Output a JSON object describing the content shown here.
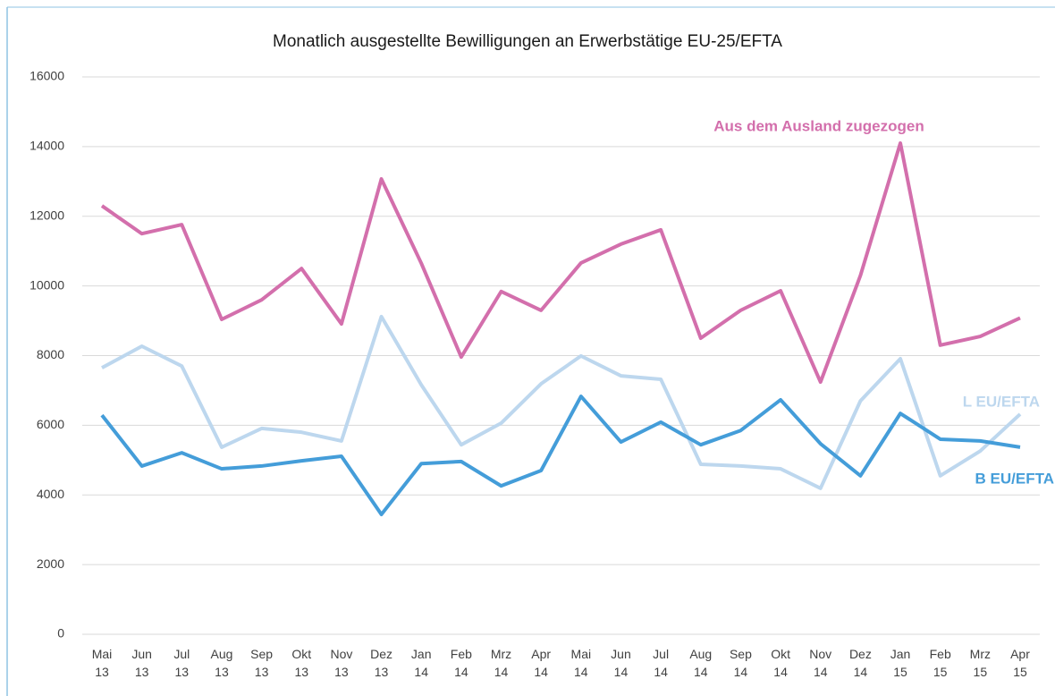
{
  "chart_data": {
    "type": "line",
    "title": "Monatlich ausgestellte Bewilligungen an Erwerbstätige EU-25/EFTA",
    "categories": [
      "Mai 13",
      "Jun 13",
      "Jul 13",
      "Aug 13",
      "Sep 13",
      "Okt 13",
      "Nov 13",
      "Dez 13",
      "Jan 14",
      "Feb 14",
      "Mrz 14",
      "Apr 14",
      "Mai 14",
      "Jun 14",
      "Jul 14",
      "Aug 14",
      "Sep 14",
      "Okt 14",
      "Nov 14",
      "Dez 14",
      "Jan 15",
      "Feb 15",
      "Mrz 15",
      "Apr 15"
    ],
    "series": [
      {
        "name": "Aus dem Ausland zugezogen",
        "color": "#d36fac",
        "values": [
          12300,
          11500,
          11760,
          9040,
          9600,
          10500,
          8910,
          13070,
          10650,
          7960,
          9840,
          9300,
          10660,
          11200,
          11610,
          8500,
          9300,
          9860,
          7240,
          10300,
          14100,
          8300,
          8550,
          9080
        ]
      },
      {
        "name": "L EU/EFTA",
        "color": "#bdd7ee",
        "values": [
          7650,
          8270,
          7700,
          5370,
          5910,
          5800,
          5550,
          9120,
          7160,
          5440,
          6060,
          7190,
          7990,
          7420,
          7320,
          4880,
          4830,
          4750,
          4190,
          6700,
          7910,
          4550,
          5260,
          6320
        ]
      },
      {
        "name": "B EU/EFTA",
        "color": "#449dd9",
        "values": [
          6290,
          4830,
          5210,
          4750,
          4830,
          4980,
          5110,
          3440,
          4900,
          4960,
          4260,
          4700,
          6830,
          5520,
          6090,
          5440,
          5850,
          6730,
          5470,
          4550,
          6340,
          5600,
          5550,
          5370
        ]
      }
    ],
    "ylim": [
      0,
      16000
    ],
    "yticks": [
      0,
      2000,
      4000,
      6000,
      8000,
      10000,
      12000,
      14000,
      16000
    ],
    "grid": true
  }
}
